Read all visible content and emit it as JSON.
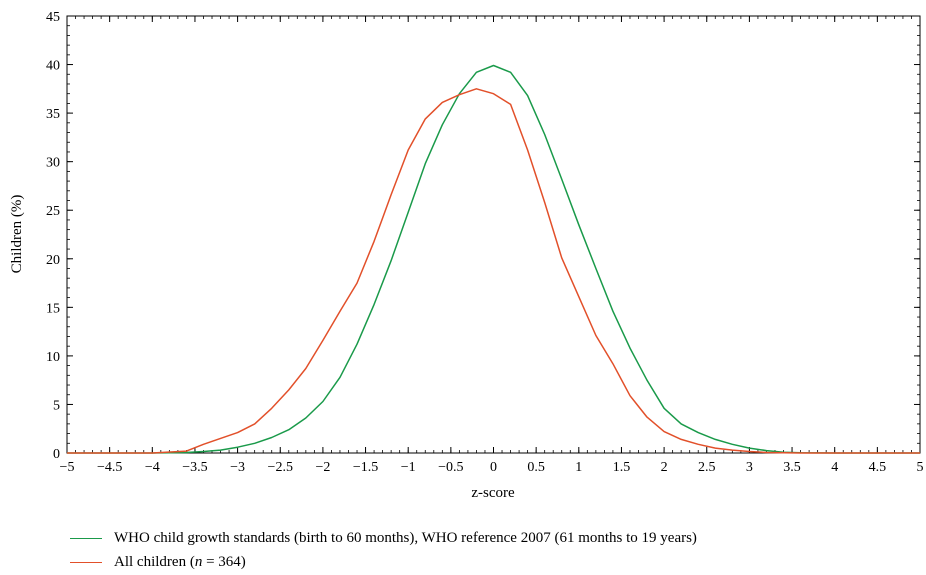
{
  "chart_data": {
    "type": "line",
    "xlabel": "z-score",
    "ylabel": "Children (%)",
    "xlim": [
      -5,
      5
    ],
    "ylim": [
      0,
      45
    ],
    "xticks": [
      -5,
      -4.5,
      -4,
      -3.5,
      -3,
      -2.5,
      -2,
      -1.5,
      -1,
      -0.5,
      0,
      0.5,
      1,
      1.5,
      2,
      2.5,
      3,
      3.5,
      4,
      4.5,
      5
    ],
    "yticks": [
      0,
      5,
      10,
      15,
      20,
      25,
      30,
      35,
      40,
      45
    ],
    "xtick_labels": [
      "−5",
      "−4.5",
      "−4",
      "−3.5",
      "−3",
      "−2.5",
      "−2",
      "−1.5",
      "−1",
      "−0.5",
      "0",
      "0.5",
      "1",
      "1.5",
      "2",
      "2.5",
      "3",
      "3.5",
      "4",
      "4.5",
      "5"
    ],
    "ytick_labels": [
      "0",
      "5",
      "10",
      "15",
      "20",
      "25",
      "30",
      "35",
      "40",
      "45"
    ],
    "grid": false,
    "legend_position": "bottom",
    "series": [
      {
        "name": "WHO child growth standards (birth to 60 months), WHO reference 2007 (61 months to 19 years)",
        "color": "#1a9a4a",
        "x": [
          -5,
          -4.5,
          -4,
          -3.6,
          -3.4,
          -3.2,
          -3,
          -2.8,
          -2.6,
          -2.4,
          -2.2,
          -2,
          -1.8,
          -1.6,
          -1.4,
          -1.2,
          -1,
          -0.8,
          -0.6,
          -0.4,
          -0.2,
          0,
          0.2,
          0.4,
          0.6,
          0.8,
          1,
          1.2,
          1.4,
          1.6,
          1.8,
          2,
          2.2,
          2.4,
          2.6,
          2.8,
          3,
          3.2,
          3.4,
          3.6,
          4,
          4.5,
          5
        ],
        "values": [
          0,
          0,
          0,
          0.05,
          0.15,
          0.3,
          0.6,
          1.0,
          1.6,
          2.4,
          3.6,
          5.3,
          7.8,
          11.2,
          15.3,
          19.8,
          24.8,
          29.8,
          33.8,
          37.0,
          39.2,
          39.9,
          39.2,
          36.8,
          32.8,
          28.2,
          23.5,
          19.0,
          14.6,
          10.8,
          7.5,
          4.6,
          3.0,
          2.1,
          1.4,
          0.9,
          0.5,
          0.25,
          0.08,
          0.02,
          0,
          0,
          0
        ]
      },
      {
        "name": "All children",
        "n_label": "n",
        "n_value": "364",
        "color": "#e2502a",
        "x": [
          -5,
          -4.5,
          -4,
          -3.6,
          -3.4,
          -3.2,
          -3,
          -2.8,
          -2.6,
          -2.4,
          -2.2,
          -2,
          -1.8,
          -1.6,
          -1.4,
          -1.2,
          -1,
          -0.8,
          -0.6,
          -0.4,
          -0.2,
          0,
          0.2,
          0.4,
          0.6,
          0.8,
          1,
          1.2,
          1.4,
          1.6,
          1.8,
          2,
          2.2,
          2.4,
          2.6,
          2.8,
          3,
          3.2,
          3.4,
          3.6,
          4,
          4.5,
          5
        ],
        "values": [
          0,
          0,
          0,
          0.2,
          0.9,
          1.5,
          2.1,
          3.0,
          4.6,
          6.5,
          8.7,
          11.6,
          14.6,
          17.5,
          21.8,
          26.6,
          31.2,
          34.4,
          36.1,
          36.9,
          37.5,
          37.0,
          35.9,
          31.2,
          25.8,
          20.1,
          16.1,
          12.1,
          9.2,
          5.9,
          3.7,
          2.2,
          1.4,
          0.9,
          0.5,
          0.3,
          0.15,
          0.05,
          0.02,
          0,
          0,
          0,
          0
        ]
      }
    ]
  }
}
